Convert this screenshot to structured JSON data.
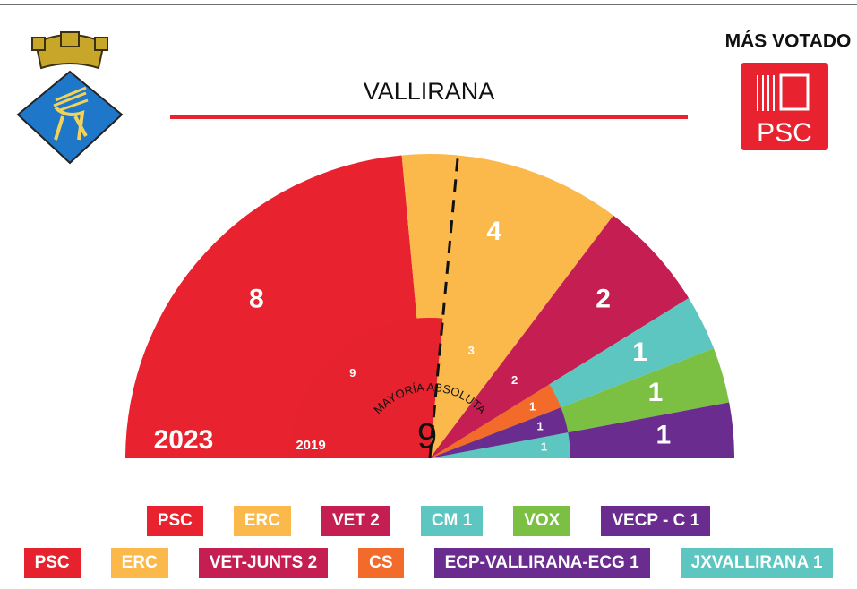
{
  "chart_data": {
    "type": "parliament",
    "title": "VALLIRANA",
    "annotation": "MÁS VOTADO",
    "most_voted": "PSC",
    "majority": {
      "label": "MAYORÍA ABSOLUTA",
      "value": 9
    },
    "series": [
      {
        "name": "2023",
        "categories": [
          "PSC",
          "ERC",
          "VET 2",
          "CM 1",
          "VOX",
          "VECP - C 1"
        ],
        "colors": [
          "#e8232f",
          "#fbb94b",
          "#c41e52",
          "#5ec6c0",
          "#7bc043",
          "#6a2d8f"
        ],
        "values": [
          8,
          4,
          2,
          1,
          1,
          1
        ]
      },
      {
        "name": "2019",
        "categories": [
          "PSC",
          "ERC",
          "VET-JUNTS 2",
          "CS",
          "ECP-VALLIRANA-ECG 1",
          "JXVALLIRANA 1"
        ],
        "colors": [
          "#e5222e",
          "#fbb94b",
          "#c41e52",
          "#f26b2a",
          "#6a2d8f",
          "#5ec6c0"
        ],
        "values": [
          9,
          3,
          2,
          1,
          1,
          1
        ]
      }
    ]
  }
}
